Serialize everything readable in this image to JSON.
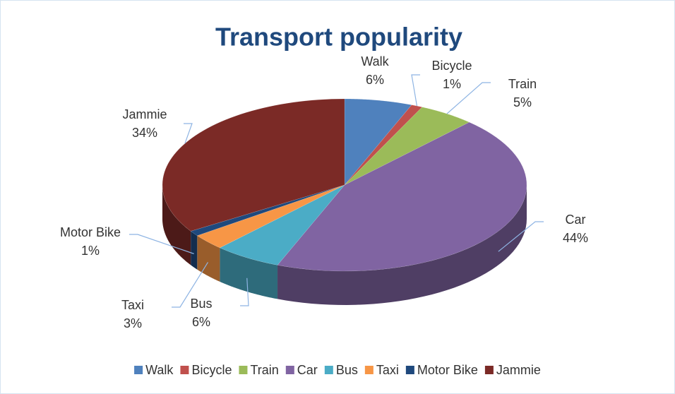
{
  "chart_data": {
    "type": "pie3d",
    "title": "Transport popularity",
    "categories": [
      "Walk",
      "Bicycle",
      "Train",
      "Car",
      "Bus",
      "Taxi",
      "Motor Bike",
      "Jammie"
    ],
    "values": [
      6,
      1,
      5,
      44,
      6,
      3,
      1,
      34
    ],
    "value_labels": [
      "6%",
      "1%",
      "5%",
      "44%",
      "6%",
      "3%",
      "1%",
      "34%"
    ],
    "colors": [
      "#4f81bd",
      "#c0504d",
      "#9bbb59",
      "#8064a2",
      "#4bacc6",
      "#f79646",
      "#1f497d",
      "#7b2a26"
    ],
    "legend": "bottom"
  }
}
